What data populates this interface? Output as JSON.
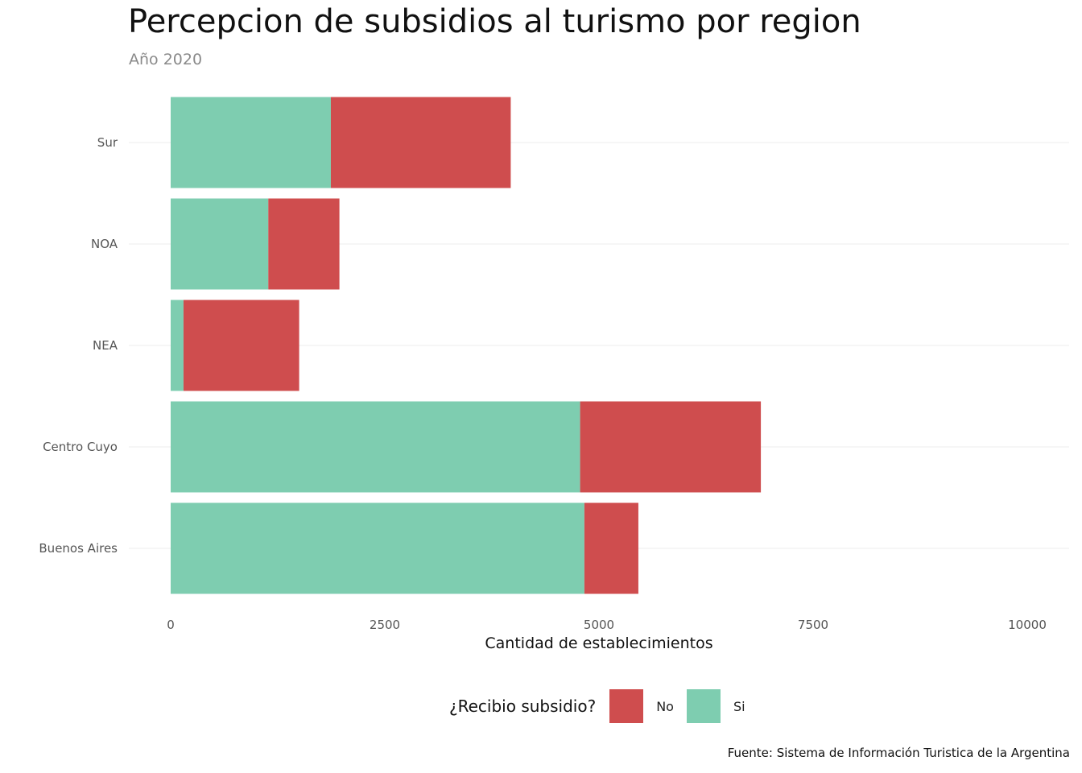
{
  "chart_data": {
    "type": "bar",
    "orientation": "horizontal",
    "stacked": true,
    "title": "Percepcion de subsidios al turismo por region",
    "subtitle": "Año 2020",
    "xlabel": "Cantidad de establecimientos",
    "ylabel": "",
    "xlim": [
      0,
      10000
    ],
    "x_ticks": [
      "0",
      "2500",
      "5000",
      "7500",
      "10000"
    ],
    "x_tick_values": [
      0,
      2500,
      5000,
      7500,
      10000
    ],
    "categories": [
      "Buenos Aires",
      "Centro Cuyo",
      "NEA",
      "NOA",
      "Sur"
    ],
    "series": [
      {
        "name": "Si",
        "color": "#7ecdb0",
        "values": [
          4830,
          4780,
          150,
          1140,
          1870
        ]
      },
      {
        "name": "No",
        "color": "#cf4d4e",
        "values": [
          630,
          2110,
          1350,
          830,
          2100
        ]
      }
    ],
    "grid": true,
    "legend_position": "bottom",
    "legend": {
      "title": "¿Recibio subsidio?",
      "items": [
        {
          "label": "No",
          "color": "#cf4d4e"
        },
        {
          "label": "Si",
          "color": "#7ecdb0"
        }
      ]
    },
    "caption": "Fuente: Sistema de Información Turistica de la Argentina"
  }
}
